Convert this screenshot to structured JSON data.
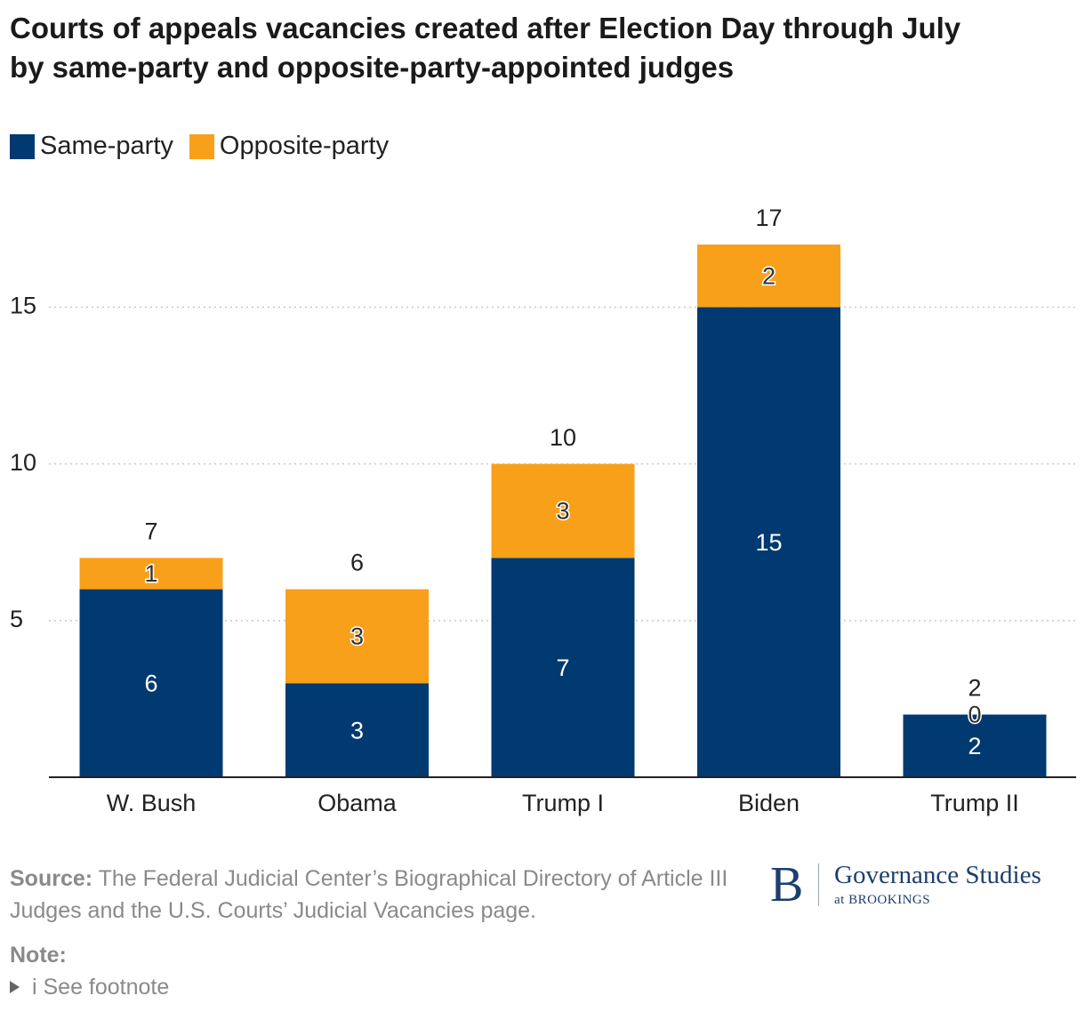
{
  "chart_data": {
    "type": "bar",
    "stacked": true,
    "title": "Courts of appeals vacancies created after Election Day through July by same-party and opposite-party-appointed judges",
    "title_lines": [
      "Courts of appeals vacancies created after Election Day through July",
      "by same-party and opposite-party-appointed judges"
    ],
    "categories": [
      "W. Bush",
      "Obama",
      "Trump I",
      "Biden",
      "Trump II"
    ],
    "series": [
      {
        "name": "Same-party",
        "color": "#003a70",
        "values": [
          6,
          3,
          7,
          15,
          2
        ]
      },
      {
        "name": "Opposite-party",
        "color": "#f9a01b",
        "values": [
          1,
          3,
          3,
          2,
          0
        ]
      }
    ],
    "totals": [
      7,
      6,
      10,
      17,
      2
    ],
    "yticks": [
      5,
      10,
      15
    ],
    "ylim": [
      0,
      17
    ],
    "grid": "horizontal-dotted",
    "legend_position": "top-left"
  },
  "footer": {
    "source_label": "Source:",
    "source_text": "The Federal Judicial Center’s Biographical Directory of Article III Judges and the U.S. Courts’ Judicial Vacancies page.",
    "note_label": "Note:",
    "note_text": "i See footnote"
  },
  "logo": {
    "letter": "B",
    "name": "Governance Studies",
    "sub": "at BROOKINGS"
  }
}
